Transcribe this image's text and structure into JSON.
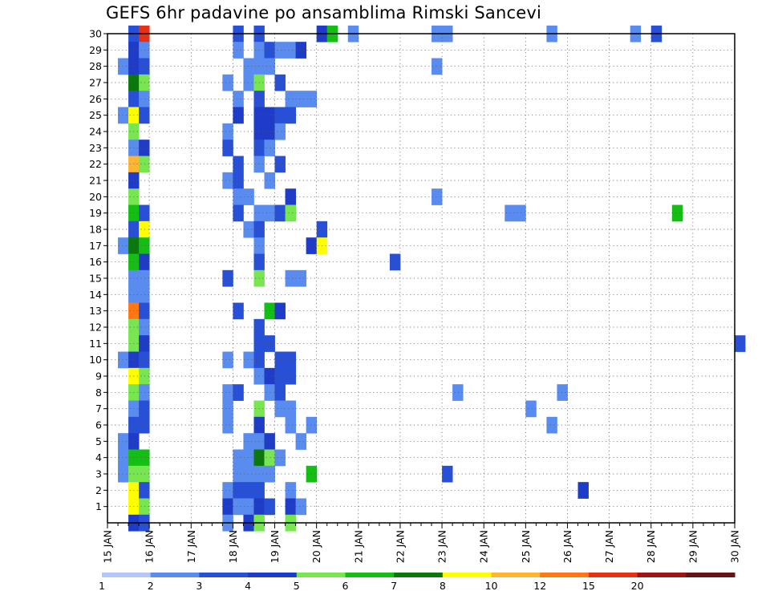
{
  "chart_data": {
    "type": "heatmap",
    "title": "GEFS 6hr padavine po ansamblima Rimski Sancevi",
    "x_tick_labels": [
      "15 JAN",
      "16 JAN",
      "17 JAN",
      "18 JAN",
      "19 JAN",
      "20 JAN",
      "21 JAN",
      "22 JAN",
      "23 JAN",
      "24 JAN",
      "25 JAN",
      "26 JAN",
      "27 JAN",
      "28 JAN",
      "29 JAN",
      "30 JAN"
    ],
    "xlim_days": [
      15,
      30
    ],
    "time_step_hours": 6,
    "y_tick_labels": [
      "1",
      "2",
      "3",
      "4",
      "5",
      "6",
      "7",
      "8",
      "9",
      "10",
      "11",
      "12",
      "13",
      "14",
      "15",
      "16",
      "17",
      "18",
      "19",
      "20",
      "21",
      "22",
      "23",
      "24",
      "25",
      "26",
      "27",
      "28",
      "29",
      "30"
    ],
    "ylim": [
      0,
      30
    ],
    "grid": true,
    "colorbar": {
      "labels": [
        "1",
        "2",
        "3",
        "4",
        "5",
        "6",
        "7",
        "8",
        "10",
        "12",
        "15",
        "20"
      ],
      "colors": [
        "#b4c8f5",
        "#5a8cf0",
        "#2850d7",
        "#1e3cc8",
        "#78e650",
        "#14be14",
        "#0a780a",
        "#ffff00",
        "#ffb432",
        "#ff7814",
        "#e63214",
        "#a01414",
        "#641414"
      ]
    },
    "cells": [
      {
        "m": 30,
        "d": 15.5,
        "c": 2
      },
      {
        "m": 30,
        "d": 15.75,
        "c": 10
      },
      {
        "m": 30,
        "d": 18.0,
        "c": 2
      },
      {
        "m": 30,
        "d": 18.5,
        "c": 2
      },
      {
        "m": 30,
        "d": 20.0,
        "c": 3
      },
      {
        "m": 30,
        "d": 20.25,
        "c": 5
      },
      {
        "m": 30,
        "d": 20.75,
        "c": 1
      },
      {
        "m": 30,
        "d": 22.75,
        "c": 1
      },
      {
        "m": 30,
        "d": 23.0,
        "c": 1
      },
      {
        "m": 30,
        "d": 25.5,
        "c": 1
      },
      {
        "m": 30,
        "d": 27.5,
        "c": 1
      },
      {
        "m": 30,
        "d": 28.0,
        "c": 2
      },
      {
        "m": 29,
        "d": 15.5,
        "c": 3
      },
      {
        "m": 29,
        "d": 15.75,
        "c": 1
      },
      {
        "m": 29,
        "d": 18.0,
        "c": 1
      },
      {
        "m": 29,
        "d": 18.5,
        "c": 1
      },
      {
        "m": 29,
        "d": 18.75,
        "c": 2
      },
      {
        "m": 29,
        "d": 19.0,
        "c": 1
      },
      {
        "m": 29,
        "d": 19.25,
        "c": 1
      },
      {
        "m": 29,
        "d": 19.5,
        "c": 3
      },
      {
        "m": 28,
        "d": 15.25,
        "c": 1
      },
      {
        "m": 28,
        "d": 15.5,
        "c": 3
      },
      {
        "m": 28,
        "d": 15.75,
        "c": 2
      },
      {
        "m": 28,
        "d": 18.25,
        "c": 1
      },
      {
        "m": 28,
        "d": 18.5,
        "c": 1
      },
      {
        "m": 28,
        "d": 18.75,
        "c": 1
      },
      {
        "m": 28,
        "d": 22.75,
        "c": 1
      },
      {
        "m": 27,
        "d": 15.5,
        "c": 6
      },
      {
        "m": 27,
        "d": 15.75,
        "c": 4
      },
      {
        "m": 27,
        "d": 17.75,
        "c": 1
      },
      {
        "m": 27,
        "d": 18.25,
        "c": 1
      },
      {
        "m": 27,
        "d": 18.5,
        "c": 4
      },
      {
        "m": 27,
        "d": 19.0,
        "c": 2
      },
      {
        "m": 26,
        "d": 15.5,
        "c": 2
      },
      {
        "m": 26,
        "d": 15.75,
        "c": 1
      },
      {
        "m": 26,
        "d": 18.0,
        "c": 1
      },
      {
        "m": 26,
        "d": 18.5,
        "c": 2
      },
      {
        "m": 26,
        "d": 19.25,
        "c": 1
      },
      {
        "m": 26,
        "d": 19.5,
        "c": 1
      },
      {
        "m": 26,
        "d": 19.75,
        "c": 1
      },
      {
        "m": 25,
        "d": 15.25,
        "c": 1
      },
      {
        "m": 25,
        "d": 15.5,
        "c": 7
      },
      {
        "m": 25,
        "d": 15.75,
        "c": 2
      },
      {
        "m": 25,
        "d": 18.0,
        "c": 3
      },
      {
        "m": 25,
        "d": 18.5,
        "c": 3
      },
      {
        "m": 25,
        "d": 18.75,
        "c": 3
      },
      {
        "m": 25,
        "d": 19.0,
        "c": 2
      },
      {
        "m": 25,
        "d": 19.25,
        "c": 2
      },
      {
        "m": 24,
        "d": 15.5,
        "c": 4
      },
      {
        "m": 24,
        "d": 17.75,
        "c": 1
      },
      {
        "m": 24,
        "d": 18.5,
        "c": 3
      },
      {
        "m": 24,
        "d": 18.75,
        "c": 3
      },
      {
        "m": 24,
        "d": 19.0,
        "c": 1
      },
      {
        "m": 23,
        "d": 15.5,
        "c": 1
      },
      {
        "m": 23,
        "d": 15.75,
        "c": 3
      },
      {
        "m": 23,
        "d": 17.75,
        "c": 2
      },
      {
        "m": 23,
        "d": 18.5,
        "c": 2
      },
      {
        "m": 23,
        "d": 18.75,
        "c": 1
      },
      {
        "m": 22,
        "d": 15.5,
        "c": 8
      },
      {
        "m": 22,
        "d": 15.75,
        "c": 4
      },
      {
        "m": 22,
        "d": 18.0,
        "c": 2
      },
      {
        "m": 22,
        "d": 18.5,
        "c": 1
      },
      {
        "m": 22,
        "d": 19.0,
        "c": 2
      },
      {
        "m": 21,
        "d": 15.5,
        "c": 3
      },
      {
        "m": 21,
        "d": 17.75,
        "c": 1
      },
      {
        "m": 21,
        "d": 18.0,
        "c": 2
      },
      {
        "m": 21,
        "d": 18.75,
        "c": 1
      },
      {
        "m": 20,
        "d": 15.5,
        "c": 4
      },
      {
        "m": 20,
        "d": 18.0,
        "c": 1
      },
      {
        "m": 20,
        "d": 18.25,
        "c": 1
      },
      {
        "m": 20,
        "d": 19.25,
        "c": 3
      },
      {
        "m": 20,
        "d": 22.75,
        "c": 1
      },
      {
        "m": 19,
        "d": 15.5,
        "c": 5
      },
      {
        "m": 19,
        "d": 15.75,
        "c": 2
      },
      {
        "m": 19,
        "d": 18.0,
        "c": 2
      },
      {
        "m": 19,
        "d": 18.5,
        "c": 1
      },
      {
        "m": 19,
        "d": 18.75,
        "c": 1
      },
      {
        "m": 19,
        "d": 19.0,
        "c": 2
      },
      {
        "m": 19,
        "d": 19.25,
        "c": 4
      },
      {
        "m": 19,
        "d": 24.5,
        "c": 1
      },
      {
        "m": 19,
        "d": 24.75,
        "c": 1
      },
      {
        "m": 19,
        "d": 28.5,
        "c": 5
      },
      {
        "m": 18,
        "d": 15.5,
        "c": 2
      },
      {
        "m": 18,
        "d": 15.75,
        "c": 7
      },
      {
        "m": 18,
        "d": 18.25,
        "c": 1
      },
      {
        "m": 18,
        "d": 18.5,
        "c": 2
      },
      {
        "m": 18,
        "d": 20.0,
        "c": 2
      },
      {
        "m": 17,
        "d": 15.25,
        "c": 1
      },
      {
        "m": 17,
        "d": 15.5,
        "c": 6
      },
      {
        "m": 17,
        "d": 15.75,
        "c": 5
      },
      {
        "m": 17,
        "d": 18.5,
        "c": 1
      },
      {
        "m": 17,
        "d": 19.75,
        "c": 3
      },
      {
        "m": 17,
        "d": 20.0,
        "c": 7
      },
      {
        "m": 16,
        "d": 15.5,
        "c": 5
      },
      {
        "m": 16,
        "d": 15.75,
        "c": 3
      },
      {
        "m": 16,
        "d": 18.5,
        "c": 2
      },
      {
        "m": 16,
        "d": 21.75,
        "c": 2
      },
      {
        "m": 15,
        "d": 15.5,
        "c": 1
      },
      {
        "m": 15,
        "d": 15.75,
        "c": 1
      },
      {
        "m": 15,
        "d": 18.5,
        "c": 4
      },
      {
        "m": 15,
        "d": 19.25,
        "c": 1
      },
      {
        "m": 15,
        "d": 19.5,
        "c": 1
      },
      {
        "m": 15,
        "d": 17.75,
        "c": 2
      },
      {
        "m": 14,
        "d": 15.5,
        "c": 1
      },
      {
        "m": 14,
        "d": 15.75,
        "c": 1
      },
      {
        "m": 13,
        "d": 15.5,
        "c": 9
      },
      {
        "m": 13,
        "d": 15.75,
        "c": 2
      },
      {
        "m": 13,
        "d": 18.0,
        "c": 2
      },
      {
        "m": 13,
        "d": 18.75,
        "c": 5
      },
      {
        "m": 13,
        "d": 19.0,
        "c": 3
      },
      {
        "m": 12,
        "d": 15.5,
        "c": 4
      },
      {
        "m": 12,
        "d": 15.75,
        "c": 1
      },
      {
        "m": 12,
        "d": 18.5,
        "c": 2
      },
      {
        "m": 11,
        "d": 15.5,
        "c": 4
      },
      {
        "m": 11,
        "d": 15.75,
        "c": 3
      },
      {
        "m": 11,
        "d": 18.5,
        "c": 2
      },
      {
        "m": 11,
        "d": 18.75,
        "c": 2
      },
      {
        "m": 11,
        "d": 30.0,
        "c": 2
      },
      {
        "m": 10,
        "d": 15.25,
        "c": 1
      },
      {
        "m": 10,
        "d": 15.5,
        "c": 3
      },
      {
        "m": 10,
        "d": 15.75,
        "c": 2
      },
      {
        "m": 10,
        "d": 17.75,
        "c": 1
      },
      {
        "m": 10,
        "d": 18.25,
        "c": 1
      },
      {
        "m": 10,
        "d": 18.5,
        "c": 2
      },
      {
        "m": 10,
        "d": 19.0,
        "c": 2
      },
      {
        "m": 10,
        "d": 19.25,
        "c": 2
      },
      {
        "m": 9,
        "d": 15.5,
        "c": 7
      },
      {
        "m": 9,
        "d": 15.75,
        "c": 4
      },
      {
        "m": 9,
        "d": 18.5,
        "c": 1
      },
      {
        "m": 9,
        "d": 18.75,
        "c": 3
      },
      {
        "m": 9,
        "d": 19.0,
        "c": 2
      },
      {
        "m": 9,
        "d": 19.25,
        "c": 2
      },
      {
        "m": 8,
        "d": 15.5,
        "c": 4
      },
      {
        "m": 8,
        "d": 15.75,
        "c": 1
      },
      {
        "m": 8,
        "d": 17.75,
        "c": 1
      },
      {
        "m": 8,
        "d": 18.0,
        "c": 2
      },
      {
        "m": 8,
        "d": 18.75,
        "c": 1
      },
      {
        "m": 8,
        "d": 19.0,
        "c": 2
      },
      {
        "m": 8,
        "d": 23.25,
        "c": 1
      },
      {
        "m": 8,
        "d": 25.75,
        "c": 1
      },
      {
        "m": 7,
        "d": 15.5,
        "c": 1
      },
      {
        "m": 7,
        "d": 15.75,
        "c": 2
      },
      {
        "m": 7,
        "d": 17.75,
        "c": 1
      },
      {
        "m": 7,
        "d": 18.5,
        "c": 4
      },
      {
        "m": 7,
        "d": 19.0,
        "c": 1
      },
      {
        "m": 7,
        "d": 19.25,
        "c": 1
      },
      {
        "m": 7,
        "d": 25.0,
        "c": 1
      },
      {
        "m": 6,
        "d": 15.5,
        "c": 2
      },
      {
        "m": 6,
        "d": 15.75,
        "c": 2
      },
      {
        "m": 6,
        "d": 17.75,
        "c": 1
      },
      {
        "m": 6,
        "d": 18.5,
        "c": 3
      },
      {
        "m": 6,
        "d": 19.25,
        "c": 1
      },
      {
        "m": 6,
        "d": 19.75,
        "c": 1
      },
      {
        "m": 6,
        "d": 25.5,
        "c": 1
      },
      {
        "m": 5,
        "d": 15.25,
        "c": 1
      },
      {
        "m": 5,
        "d": 15.5,
        "c": 3
      },
      {
        "m": 5,
        "d": 18.25,
        "c": 1
      },
      {
        "m": 5,
        "d": 18.5,
        "c": 1
      },
      {
        "m": 5,
        "d": 18.75,
        "c": 3
      },
      {
        "m": 5,
        "d": 19.5,
        "c": 1
      },
      {
        "m": 4,
        "d": 15.25,
        "c": 1
      },
      {
        "m": 4,
        "d": 15.5,
        "c": 5
      },
      {
        "m": 4,
        "d": 15.75,
        "c": 5
      },
      {
        "m": 4,
        "d": 18.0,
        "c": 1
      },
      {
        "m": 4,
        "d": 18.25,
        "c": 1
      },
      {
        "m": 4,
        "d": 18.5,
        "c": 6
      },
      {
        "m": 4,
        "d": 18.75,
        "c": 4
      },
      {
        "m": 4,
        "d": 19.0,
        "c": 1
      },
      {
        "m": 3,
        "d": 15.25,
        "c": 1
      },
      {
        "m": 3,
        "d": 15.5,
        "c": 4
      },
      {
        "m": 3,
        "d": 15.75,
        "c": 4
      },
      {
        "m": 3,
        "d": 18.0,
        "c": 1
      },
      {
        "m": 3,
        "d": 18.25,
        "c": 1
      },
      {
        "m": 3,
        "d": 18.5,
        "c": 1
      },
      {
        "m": 3,
        "d": 18.75,
        "c": 1
      },
      {
        "m": 3,
        "d": 19.75,
        "c": 5
      },
      {
        "m": 3,
        "d": 23.0,
        "c": 2
      },
      {
        "m": 2,
        "d": 15.5,
        "c": 7
      },
      {
        "m": 2,
        "d": 15.75,
        "c": 2
      },
      {
        "m": 2,
        "d": 17.75,
        "c": 1
      },
      {
        "m": 2,
        "d": 18.0,
        "c": 2
      },
      {
        "m": 2,
        "d": 18.25,
        "c": 2
      },
      {
        "m": 2,
        "d": 18.5,
        "c": 2
      },
      {
        "m": 2,
        "d": 19.25,
        "c": 1
      },
      {
        "m": 2,
        "d": 26.25,
        "c": 3
      },
      {
        "m": 1,
        "d": 15.5,
        "c": 7
      },
      {
        "m": 1,
        "d": 15.75,
        "c": 4
      },
      {
        "m": 1,
        "d": 17.75,
        "c": 3
      },
      {
        "m": 1,
        "d": 18.0,
        "c": 1
      },
      {
        "m": 1,
        "d": 18.25,
        "c": 1
      },
      {
        "m": 1,
        "d": 18.5,
        "c": 3
      },
      {
        "m": 1,
        "d": 18.75,
        "c": 2
      },
      {
        "m": 1,
        "d": 19.25,
        "c": 3
      },
      {
        "m": 1,
        "d": 19.5,
        "c": 1
      },
      {
        "m": 0,
        "d": 15.5,
        "c": 3
      },
      {
        "m": 0,
        "d": 15.75,
        "c": 2
      },
      {
        "m": 0,
        "d": 17.75,
        "c": 1
      },
      {
        "m": 0,
        "d": 18.25,
        "c": 3
      },
      {
        "m": 0,
        "d": 18.5,
        "c": 4
      },
      {
        "m": 0,
        "d": 19.25,
        "c": 4
      }
    ]
  }
}
